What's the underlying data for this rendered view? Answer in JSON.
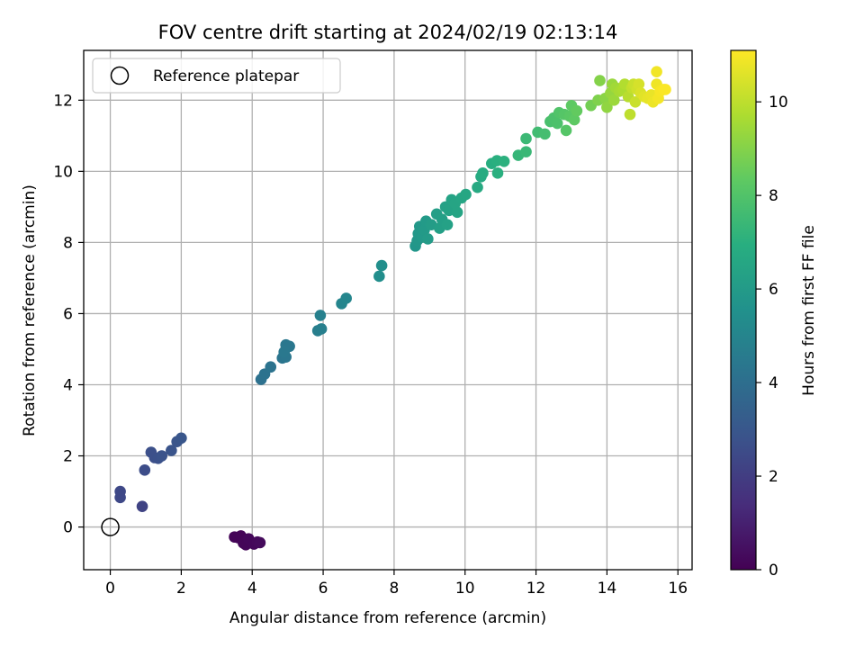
{
  "chart_data": {
    "type": "scatter",
    "title": "FOV centre drift starting at 2024/02/19 02:13:14",
    "xlabel": "Angular distance from reference (arcmin)",
    "ylabel": "Rotation from reference (arcmin)",
    "xlim": [
      -0.75,
      16.4
    ],
    "ylim": [
      -1.2,
      13.4
    ],
    "xticks": [
      0,
      2,
      4,
      6,
      8,
      10,
      12,
      14,
      16
    ],
    "yticks": [
      0,
      2,
      4,
      6,
      8,
      10,
      12
    ],
    "grid": true,
    "legend": {
      "placement": "top-left",
      "entries": [
        "Reference platepar"
      ]
    },
    "reference_point": {
      "x": 0,
      "y": 0,
      "label": "Reference platepar"
    },
    "colorbar": {
      "label": "Hours from first FF file",
      "range": [
        0,
        11.1
      ],
      "ticks": [
        0,
        2,
        4,
        6,
        8,
        10
      ],
      "colormap": "viridis"
    },
    "points": [
      {
        "x": 3.5,
        "y": -0.28,
        "c": 0.1
      },
      {
        "x": 3.6,
        "y": -0.3,
        "c": 0.1
      },
      {
        "x": 3.68,
        "y": -0.25,
        "c": 0.1
      },
      {
        "x": 3.75,
        "y": -0.45,
        "c": 0.15
      },
      {
        "x": 3.82,
        "y": -0.5,
        "c": 0.15
      },
      {
        "x": 3.9,
        "y": -0.33,
        "c": 0.2
      },
      {
        "x": 4.05,
        "y": -0.48,
        "c": 0.2
      },
      {
        "x": 4.15,
        "y": -0.42,
        "c": 0.25
      },
      {
        "x": 4.22,
        "y": -0.44,
        "c": 0.3
      },
      {
        "x": 0.28,
        "y": 1.0,
        "c": 2.4
      },
      {
        "x": 0.28,
        "y": 0.83,
        "c": 2.4
      },
      {
        "x": 0.9,
        "y": 0.58,
        "c": 2.2
      },
      {
        "x": 0.97,
        "y": 1.6,
        "c": 2.6
      },
      {
        "x": 1.15,
        "y": 2.1,
        "c": 2.7
      },
      {
        "x": 1.25,
        "y": 1.95,
        "c": 2.7
      },
      {
        "x": 1.35,
        "y": 1.93,
        "c": 2.75
      },
      {
        "x": 1.45,
        "y": 2.0,
        "c": 2.8
      },
      {
        "x": 1.72,
        "y": 2.15,
        "c": 2.85
      },
      {
        "x": 1.88,
        "y": 2.4,
        "c": 2.9
      },
      {
        "x": 2.0,
        "y": 2.5,
        "c": 2.95
      },
      {
        "x": 4.25,
        "y": 4.15,
        "c": 4.1
      },
      {
        "x": 4.35,
        "y": 4.3,
        "c": 4.15
      },
      {
        "x": 4.52,
        "y": 4.5,
        "c": 4.2
      },
      {
        "x": 4.85,
        "y": 4.75,
        "c": 4.3
      },
      {
        "x": 4.95,
        "y": 4.78,
        "c": 4.35
      },
      {
        "x": 4.95,
        "y": 5.12,
        "c": 4.4
      },
      {
        "x": 5.05,
        "y": 5.08,
        "c": 4.4
      },
      {
        "x": 4.9,
        "y": 4.92,
        "c": 4.45
      },
      {
        "x": 5.85,
        "y": 5.52,
        "c": 4.7
      },
      {
        "x": 5.95,
        "y": 5.57,
        "c": 4.75
      },
      {
        "x": 5.92,
        "y": 5.95,
        "c": 4.8
      },
      {
        "x": 6.52,
        "y": 6.28,
        "c": 5.0
      },
      {
        "x": 6.65,
        "y": 6.43,
        "c": 5.05
      },
      {
        "x": 7.58,
        "y": 7.05,
        "c": 5.4
      },
      {
        "x": 7.65,
        "y": 7.35,
        "c": 5.45
      },
      {
        "x": 8.6,
        "y": 7.9,
        "c": 5.8
      },
      {
        "x": 8.65,
        "y": 8.05,
        "c": 5.85
      },
      {
        "x": 8.68,
        "y": 8.25,
        "c": 5.9
      },
      {
        "x": 8.72,
        "y": 8.45,
        "c": 5.9
      },
      {
        "x": 8.78,
        "y": 8.15,
        "c": 5.95
      },
      {
        "x": 8.85,
        "y": 8.35,
        "c": 6.0
      },
      {
        "x": 8.9,
        "y": 8.6,
        "c": 6.0
      },
      {
        "x": 8.95,
        "y": 8.1,
        "c": 6.05
      },
      {
        "x": 9.05,
        "y": 8.5,
        "c": 6.1
      },
      {
        "x": 9.2,
        "y": 8.8,
        "c": 6.15
      },
      {
        "x": 9.28,
        "y": 8.4,
        "c": 6.2
      },
      {
        "x": 9.35,
        "y": 8.65,
        "c": 6.2
      },
      {
        "x": 9.45,
        "y": 9.0,
        "c": 6.3
      },
      {
        "x": 9.5,
        "y": 8.5,
        "c": 6.3
      },
      {
        "x": 9.55,
        "y": 8.9,
        "c": 6.35
      },
      {
        "x": 9.62,
        "y": 9.2,
        "c": 6.4
      },
      {
        "x": 9.72,
        "y": 9.1,
        "c": 6.45
      },
      {
        "x": 9.78,
        "y": 8.85,
        "c": 6.45
      },
      {
        "x": 9.9,
        "y": 9.25,
        "c": 6.5
      },
      {
        "x": 10.02,
        "y": 9.35,
        "c": 6.55
      },
      {
        "x": 10.35,
        "y": 9.55,
        "c": 6.7
      },
      {
        "x": 10.45,
        "y": 9.85,
        "c": 6.75
      },
      {
        "x": 10.5,
        "y": 9.95,
        "c": 6.8
      },
      {
        "x": 10.75,
        "y": 10.22,
        "c": 6.9
      },
      {
        "x": 10.9,
        "y": 10.3,
        "c": 7.0
      },
      {
        "x": 10.92,
        "y": 9.95,
        "c": 7.0
      },
      {
        "x": 11.1,
        "y": 10.28,
        "c": 7.05
      },
      {
        "x": 11.5,
        "y": 10.45,
        "c": 7.3
      },
      {
        "x": 11.72,
        "y": 10.55,
        "c": 7.4
      },
      {
        "x": 11.72,
        "y": 10.92,
        "c": 7.45
      },
      {
        "x": 12.05,
        "y": 11.1,
        "c": 7.6
      },
      {
        "x": 12.25,
        "y": 11.05,
        "c": 7.7
      },
      {
        "x": 12.4,
        "y": 11.4,
        "c": 7.8
      },
      {
        "x": 12.5,
        "y": 11.5,
        "c": 7.85
      },
      {
        "x": 12.6,
        "y": 11.35,
        "c": 7.9
      },
      {
        "x": 12.65,
        "y": 11.65,
        "c": 8.0
      },
      {
        "x": 12.8,
        "y": 11.6,
        "c": 8.1
      },
      {
        "x": 12.85,
        "y": 11.15,
        "c": 8.1
      },
      {
        "x": 12.95,
        "y": 11.55,
        "c": 8.2
      },
      {
        "x": 13.0,
        "y": 11.85,
        "c": 8.3
      },
      {
        "x": 13.08,
        "y": 11.45,
        "c": 8.3
      },
      {
        "x": 13.15,
        "y": 11.7,
        "c": 8.4
      },
      {
        "x": 13.55,
        "y": 11.85,
        "c": 8.7
      },
      {
        "x": 13.75,
        "y": 12.0,
        "c": 8.9
      },
      {
        "x": 13.8,
        "y": 12.55,
        "c": 9.0
      },
      {
        "x": 13.95,
        "y": 12.05,
        "c": 9.1
      },
      {
        "x": 14.0,
        "y": 11.8,
        "c": 9.2
      },
      {
        "x": 14.1,
        "y": 12.2,
        "c": 9.3
      },
      {
        "x": 14.15,
        "y": 12.45,
        "c": 9.35
      },
      {
        "x": 14.2,
        "y": 12.0,
        "c": 9.4
      },
      {
        "x": 14.25,
        "y": 12.35,
        "c": 9.5
      },
      {
        "x": 14.35,
        "y": 12.25,
        "c": 9.6
      },
      {
        "x": 14.45,
        "y": 12.3,
        "c": 9.7
      },
      {
        "x": 14.5,
        "y": 12.45,
        "c": 9.8
      },
      {
        "x": 14.6,
        "y": 12.1,
        "c": 9.9
      },
      {
        "x": 14.65,
        "y": 11.6,
        "c": 10.0
      },
      {
        "x": 14.7,
        "y": 12.35,
        "c": 10.1
      },
      {
        "x": 14.75,
        "y": 12.45,
        "c": 10.2
      },
      {
        "x": 14.8,
        "y": 11.95,
        "c": 10.2
      },
      {
        "x": 14.85,
        "y": 12.3,
        "c": 10.3
      },
      {
        "x": 14.9,
        "y": 12.45,
        "c": 10.4
      },
      {
        "x": 14.95,
        "y": 12.2,
        "c": 10.5
      },
      {
        "x": 15.05,
        "y": 12.1,
        "c": 10.6
      },
      {
        "x": 15.15,
        "y": 12.05,
        "c": 10.7
      },
      {
        "x": 15.25,
        "y": 12.15,
        "c": 10.75
      },
      {
        "x": 15.3,
        "y": 11.95,
        "c": 10.8
      },
      {
        "x": 15.4,
        "y": 12.45,
        "c": 10.85
      },
      {
        "x": 15.4,
        "y": 12.8,
        "c": 10.9
      },
      {
        "x": 15.45,
        "y": 12.05,
        "c": 10.95
      },
      {
        "x": 15.5,
        "y": 12.25,
        "c": 11.0
      },
      {
        "x": 15.6,
        "y": 12.3,
        "c": 11.05
      },
      {
        "x": 15.65,
        "y": 12.3,
        "c": 11.05
      }
    ]
  }
}
